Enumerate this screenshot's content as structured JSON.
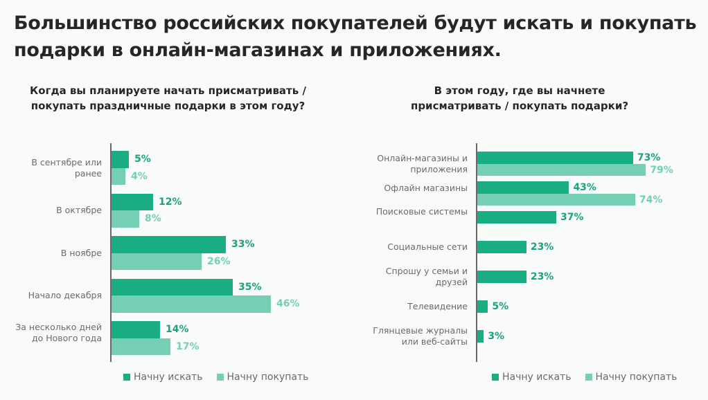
{
  "title": "Большинство российских покупателей будут искать и покупать подарки в онлайн-магазинах и приложениях.",
  "colors": {
    "search": "#18ad82",
    "buy": "#74cfb4",
    "search_label": "#18a37c"
  },
  "chart_data": [
    {
      "type": "bar",
      "orientation": "horizontal",
      "title": "Когда вы планируете начать присматривать / покупать праздничные подарки в этом году?",
      "categories": [
        "В сентябре или ранее",
        "В октябре",
        "В ноябре",
        "Начало декабря",
        "За несколько дней до Нового года"
      ],
      "series": [
        {
          "name": "Начну искать",
          "values": [
            5,
            12,
            33,
            35,
            14
          ],
          "labels": [
            "5%",
            "12%",
            "33%",
            "35%",
            "14%"
          ]
        },
        {
          "name": "Начну покупать",
          "values": [
            4,
            8,
            26,
            46,
            17
          ],
          "labels": [
            "4%",
            "8%",
            "26%",
            "46%",
            "17%"
          ]
        }
      ],
      "legend": "bottom",
      "xlim": [
        0,
        50
      ],
      "unit": "%"
    },
    {
      "type": "bar",
      "orientation": "horizontal",
      "title": "В этом году, где вы начнете присматривать / покупать подарки?",
      "categories": [
        "Онлайн-магазины и приложения",
        "Офлайн магазины",
        "Поисковые системы",
        "Социальные сети",
        "Спрошу у семьи и друзей",
        "Телевидение",
        "Глянцевые журналы или веб-сайты"
      ],
      "series": [
        {
          "name": "Начну искать",
          "values": [
            73,
            43,
            37,
            23,
            23,
            5,
            3
          ],
          "labels": [
            "73%",
            "43%",
            "37%",
            "23%",
            "23%",
            "5%",
            "3%"
          ]
        },
        {
          "name": "Начну покупать",
          "values": [
            79,
            74,
            null,
            null,
            null,
            null,
            null
          ],
          "labels": [
            "79%",
            "74%",
            null,
            null,
            null,
            null,
            null
          ]
        }
      ],
      "legend": "bottom",
      "xlim": [
        0,
        100
      ],
      "unit": "%"
    }
  ]
}
